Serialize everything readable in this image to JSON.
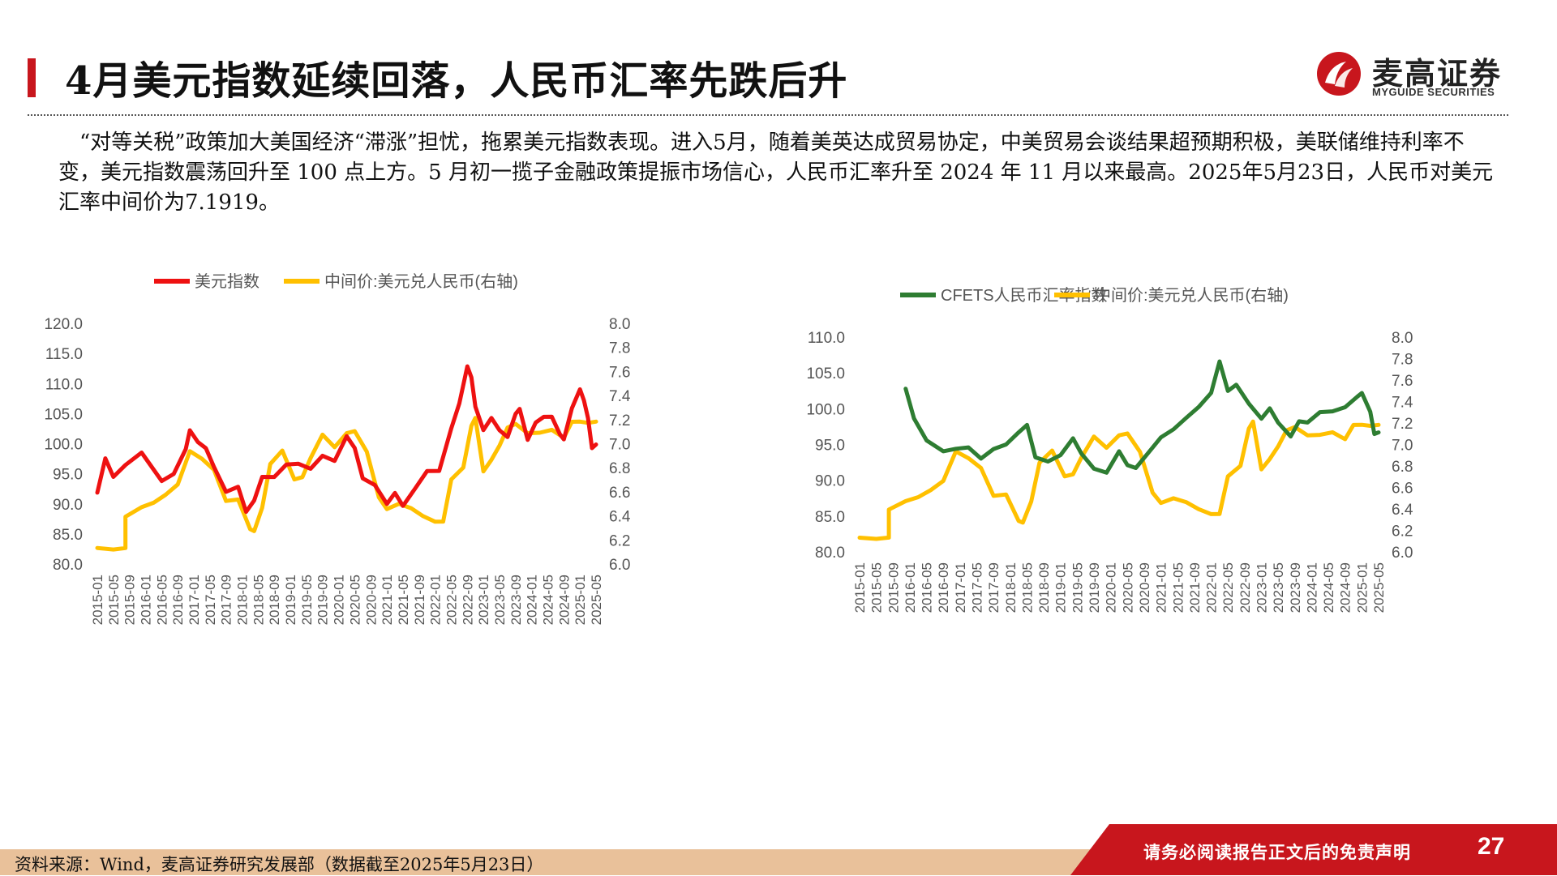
{
  "header": {
    "title": "4月美元指数延续回落，人民币汇率先跌后升",
    "logo_cn": "麦高证券",
    "logo_en": "MYGUIDE SECURITIES"
  },
  "summary": "“对等关税”政策加大美国经济“滞涨”担忧，拖累美元指数表现。进入5月，随着美英达成贸易协定，中美贸易会谈结果超预期积极，美联储维持利率不变，美元指数震荡回升至 100 点上方。5 月初一揽子金融政策提振市场信心，人民币汇率升至 2024 年 11 月以来最高。2025年5月23日，人民币对美元汇率中间价为7.1919。",
  "footer": {
    "source": "资料来源：Wind，麦高证券研究发展部（数据截至2025年5月23日）",
    "disclaimer": "请务必阅读报告正文后的免责声明",
    "page": "27"
  },
  "colors": {
    "brand_red": "#c8161d",
    "usd_index": "#ee1111",
    "cny_mid": "#ffc000",
    "cfets": "#2e7d32",
    "footer_tan": "#e9c19a"
  },
  "chart_data": [
    {
      "type": "line",
      "x_ticks": [
        "2015-01",
        "2015-05",
        "2015-09",
        "2016-01",
        "2016-05",
        "2016-09",
        "2017-01",
        "2017-05",
        "2017-09",
        "2018-01",
        "2018-05",
        "2018-09",
        "2019-01",
        "2019-05",
        "2019-09",
        "2020-01",
        "2020-05",
        "2020-09",
        "2021-01",
        "2021-05",
        "2021-09",
        "2022-01",
        "2022-05",
        "2022-09",
        "2023-01",
        "2023-05",
        "2023-09",
        "2024-01",
        "2024-05",
        "2024-09",
        "2025-01",
        "2025-05"
      ],
      "ylim": [
        80,
        120
      ],
      "y_ticks": [
        "120.0",
        "115.0",
        "110.0",
        "105.0",
        "100.0",
        "95.0",
        "90.0",
        "85.0",
        "80.0"
      ],
      "y2lim": [
        6.0,
        8.0
      ],
      "y2_ticks": [
        "8.0",
        "7.8",
        "7.6",
        "7.4",
        "7.2",
        "7.0",
        "6.8",
        "6.6",
        "6.4",
        "6.2",
        "6.0"
      ],
      "legend_position": "top",
      "series": [
        {
          "name": "美元指数",
          "axis": "left",
          "color": "#ee1111",
          "points": [
            [
              "2015-01",
              92
            ],
            [
              "2015-03",
              98
            ],
            [
              "2015-05",
              95
            ],
            [
              "2015-08",
              97
            ],
            [
              "2015-12",
              99
            ],
            [
              "2016-02",
              97
            ],
            [
              "2016-05",
              94
            ],
            [
              "2016-08",
              95
            ],
            [
              "2016-11",
              99
            ],
            [
              "2016-12",
              102
            ],
            [
              "2017-02",
              100
            ],
            [
              "2017-04",
              99
            ],
            [
              "2017-06",
              96
            ],
            [
              "2017-09",
              92
            ],
            [
              "2017-12",
              93
            ],
            [
              "2018-02",
              89
            ],
            [
              "2018-04",
              91
            ],
            [
              "2018-06",
              95
            ],
            [
              "2018-09",
              95
            ],
            [
              "2018-12",
              97
            ],
            [
              "2019-03",
              97
            ],
            [
              "2019-06",
              96
            ],
            [
              "2019-09",
              98
            ],
            [
              "2019-12",
              97
            ],
            [
              "2020-03",
              101
            ],
            [
              "2020-05",
              99
            ],
            [
              "2020-07",
              94
            ],
            [
              "2020-10",
              93
            ],
            [
              "2021-01",
              90
            ],
            [
              "2021-03",
              92
            ],
            [
              "2021-05",
              90
            ],
            [
              "2021-08",
              93
            ],
            [
              "2021-11",
              96
            ],
            [
              "2022-02",
              96
            ],
            [
              "2022-05",
              103
            ],
            [
              "2022-07",
              107
            ],
            [
              "2022-09",
              113
            ],
            [
              "2022-10",
              111
            ],
            [
              "2022-11",
              106
            ],
            [
              "2023-01",
              102
            ],
            [
              "2023-03",
              104
            ],
            [
              "2023-05",
              102
            ],
            [
              "2023-07",
              101
            ],
            [
              "2023-09",
              105
            ],
            [
              "2023-10",
              106
            ],
            [
              "2023-12",
              101
            ],
            [
              "2024-02",
              104
            ],
            [
              "2024-04",
              105
            ],
            [
              "2024-06",
              105
            ],
            [
              "2024-08",
              102
            ],
            [
              "2024-09",
              101
            ],
            [
              "2024-11",
              106
            ],
            [
              "2025-01",
              109
            ],
            [
              "2025-02",
              107
            ],
            [
              "2025-03",
              104
            ],
            [
              "2025-04",
              99
            ],
            [
              "2025-05",
              100
            ]
          ]
        },
        {
          "name": "中间价:美元兑人民币(右轴)",
          "axis": "right",
          "color": "#ffc000",
          "points": [
            [
              "2015-01",
              6.14
            ],
            [
              "2015-05",
              6.12
            ],
            [
              "2015-08",
              6.13
            ],
            [
              "2015-08",
              6.39
            ],
            [
              "2015-12",
              6.47
            ],
            [
              "2016-03",
              6.51
            ],
            [
              "2016-06",
              6.58
            ],
            [
              "2016-09",
              6.67
            ],
            [
              "2016-12",
              6.95
            ],
            [
              "2017-03",
              6.89
            ],
            [
              "2017-06",
              6.8
            ],
            [
              "2017-09",
              6.54
            ],
            [
              "2017-12",
              6.55
            ],
            [
              "2018-03",
              6.3
            ],
            [
              "2018-04",
              6.28
            ],
            [
              "2018-06",
              6.47
            ],
            [
              "2018-08",
              6.83
            ],
            [
              "2018-11",
              6.94
            ],
            [
              "2019-02",
              6.7
            ],
            [
              "2019-04",
              6.72
            ],
            [
              "2019-06",
              6.88
            ],
            [
              "2019-09",
              7.08
            ],
            [
              "2019-12",
              6.98
            ],
            [
              "2020-03",
              7.1
            ],
            [
              "2020-05",
              7.12
            ],
            [
              "2020-08",
              6.95
            ],
            [
              "2020-11",
              6.57
            ],
            [
              "2021-01",
              6.47
            ],
            [
              "2021-04",
              6.51
            ],
            [
              "2021-07",
              6.47
            ],
            [
              "2021-10",
              6.4
            ],
            [
              "2022-01",
              6.35
            ],
            [
              "2022-03",
              6.35
            ],
            [
              "2022-05",
              6.7
            ],
            [
              "2022-08",
              6.8
            ],
            [
              "2022-10",
              7.15
            ],
            [
              "2022-11",
              7.22
            ],
            [
              "2023-01",
              6.78
            ],
            [
              "2023-03",
              6.88
            ],
            [
              "2023-05",
              7.0
            ],
            [
              "2023-07",
              7.15
            ],
            [
              "2023-09",
              7.18
            ],
            [
              "2023-12",
              7.1
            ],
            [
              "2024-03",
              7.1
            ],
            [
              "2024-06",
              7.12
            ],
            [
              "2024-09",
              7.05
            ],
            [
              "2024-11",
              7.18
            ],
            [
              "2025-01",
              7.18
            ],
            [
              "2025-03",
              7.17
            ],
            [
              "2025-05",
              7.19
            ]
          ]
        }
      ]
    },
    {
      "type": "line",
      "x_ticks": [
        "2015-01",
        "2015-05",
        "2015-09",
        "2016-01",
        "2016-05",
        "2016-09",
        "2017-01",
        "2017-05",
        "2017-09",
        "2018-01",
        "2018-05",
        "2018-09",
        "2019-01",
        "2019-05",
        "2019-09",
        "2020-01",
        "2020-05",
        "2020-09",
        "2021-01",
        "2021-05",
        "2021-09",
        "2022-01",
        "2022-05",
        "2022-09",
        "2023-01",
        "2023-05",
        "2023-09",
        "2024-01",
        "2024-05",
        "2024-09",
        "2025-01",
        "2025-05"
      ],
      "ylim": [
        80,
        110
      ],
      "y_ticks": [
        "110.0",
        "105.0",
        "100.0",
        "95.0",
        "90.0",
        "85.0",
        "80.0"
      ],
      "y2lim": [
        6.0,
        8.0
      ],
      "y2_ticks": [
        "8.0",
        "7.8",
        "7.6",
        "7.4",
        "7.2",
        "7.0",
        "6.8",
        "6.6",
        "6.4",
        "6.2",
        "6.0"
      ],
      "legend_position": "top",
      "series": [
        {
          "name": "CFETS人民币汇率指数",
          "axis": "left",
          "color": "#2e7d32",
          "points": [
            [
              "2015-12",
              102.9
            ],
            [
              "2016-02",
              99.0
            ],
            [
              "2016-05",
              96.0
            ],
            [
              "2016-09",
              94.5
            ],
            [
              "2016-12",
              94.8
            ],
            [
              "2017-03",
              94.9
            ],
            [
              "2017-06",
              93.2
            ],
            [
              "2017-09",
              94.4
            ],
            [
              "2017-12",
              94.9
            ],
            [
              "2018-03",
              96.5
            ],
            [
              "2018-05",
              97.5
            ],
            [
              "2018-07",
              93.0
            ],
            [
              "2018-10",
              92.5
            ],
            [
              "2019-01",
              93.5
            ],
            [
              "2019-04",
              96.0
            ],
            [
              "2019-06",
              94.0
            ],
            [
              "2019-09",
              92.0
            ],
            [
              "2019-12",
              91.5
            ],
            [
              "2020-03",
              94.5
            ],
            [
              "2020-05",
              92.5
            ],
            [
              "2020-07",
              92.0
            ],
            [
              "2020-10",
              94.0
            ],
            [
              "2021-01",
              96.0
            ],
            [
              "2021-04",
              97.0
            ],
            [
              "2021-07",
              98.5
            ],
            [
              "2021-10",
              100.0
            ],
            [
              "2022-01",
              102.0
            ],
            [
              "2022-03",
              106.5
            ],
            [
              "2022-05",
              102.5
            ],
            [
              "2022-07",
              103.5
            ],
            [
              "2022-10",
              101.0
            ],
            [
              "2023-01",
              99.0
            ],
            [
              "2023-03",
              100.5
            ],
            [
              "2023-05",
              98.5
            ],
            [
              "2023-08",
              96.5
            ],
            [
              "2023-10",
              98.5
            ],
            [
              "2023-12",
              98.2
            ],
            [
              "2024-03",
              99.5
            ],
            [
              "2024-06",
              99.5
            ],
            [
              "2024-09",
              100.0
            ],
            [
              "2024-12",
              101.5
            ],
            [
              "2025-01",
              102.0
            ],
            [
              "2025-03",
              99.5
            ],
            [
              "2025-04",
              96.5
            ],
            [
              "2025-05",
              96.8
            ]
          ]
        },
        {
          "name": "中间价:美元兑人民币(右轴)",
          "axis": "right",
          "color": "#ffc000",
          "points": [
            [
              "2015-01",
              6.14
            ],
            [
              "2015-05",
              6.12
            ],
            [
              "2015-08",
              6.13
            ],
            [
              "2015-08",
              6.39
            ],
            [
              "2015-12",
              6.47
            ],
            [
              "2016-03",
              6.51
            ],
            [
              "2016-06",
              6.58
            ],
            [
              "2016-09",
              6.67
            ],
            [
              "2016-12",
              6.95
            ],
            [
              "2017-03",
              6.89
            ],
            [
              "2017-06",
              6.8
            ],
            [
              "2017-09",
              6.54
            ],
            [
              "2017-12",
              6.55
            ],
            [
              "2018-03",
              6.3
            ],
            [
              "2018-04",
              6.28
            ],
            [
              "2018-06",
              6.47
            ],
            [
              "2018-08",
              6.83
            ],
            [
              "2018-11",
              6.94
            ],
            [
              "2019-02",
              6.7
            ],
            [
              "2019-04",
              6.72
            ],
            [
              "2019-06",
              6.88
            ],
            [
              "2019-09",
              7.08
            ],
            [
              "2019-12",
              6.98
            ],
            [
              "2020-03",
              7.1
            ],
            [
              "2020-05",
              7.12
            ],
            [
              "2020-08",
              6.95
            ],
            [
              "2020-11",
              6.57
            ],
            [
              "2021-01",
              6.47
            ],
            [
              "2021-04",
              6.51
            ],
            [
              "2021-07",
              6.47
            ],
            [
              "2021-10",
              6.4
            ],
            [
              "2022-01",
              6.35
            ],
            [
              "2022-03",
              6.35
            ],
            [
              "2022-05",
              6.7
            ],
            [
              "2022-08",
              6.8
            ],
            [
              "2022-10",
              7.15
            ],
            [
              "2022-11",
              7.22
            ],
            [
              "2023-01",
              6.78
            ],
            [
              "2023-03",
              6.88
            ],
            [
              "2023-05",
              7.0
            ],
            [
              "2023-07",
              7.15
            ],
            [
              "2023-09",
              7.18
            ],
            [
              "2023-12",
              7.1
            ],
            [
              "2024-03",
              7.1
            ],
            [
              "2024-06",
              7.12
            ],
            [
              "2024-09",
              7.05
            ],
            [
              "2024-11",
              7.18
            ],
            [
              "2025-01",
              7.18
            ],
            [
              "2025-03",
              7.17
            ],
            [
              "2025-05",
              7.19
            ]
          ]
        }
      ]
    }
  ]
}
